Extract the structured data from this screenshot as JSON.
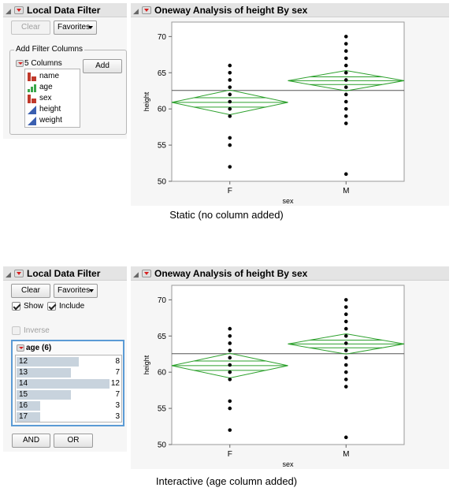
{
  "top": {
    "filter_panel": {
      "title": "Local Data Filter",
      "clear_label": "Clear",
      "favorites_label": "Favorites",
      "add_filter_columns_legend": "Add Filter Columns",
      "columns_count_label": "5 Columns",
      "add_label": "Add",
      "columns": [
        {
          "name": "name",
          "type": "nominal"
        },
        {
          "name": "age",
          "type": "ordinal"
        },
        {
          "name": "sex",
          "type": "nominal"
        },
        {
          "name": "height",
          "type": "continuous"
        },
        {
          "name": "weight",
          "type": "continuous"
        }
      ]
    },
    "analysis_title": "Oneway Analysis of height By sex",
    "caption": "Static (no column added)"
  },
  "bottom": {
    "filter_panel": {
      "title": "Local Data Filter",
      "clear_label": "Clear",
      "favorites_label": "Favorites",
      "show_label": "Show",
      "include_label": "Include",
      "inverse_label": "Inverse",
      "show_checked": true,
      "include_checked": true,
      "inverse_checked": false,
      "age_header": "age (6)",
      "age_levels": [
        {
          "label": "12",
          "count": "8"
        },
        {
          "label": "13",
          "count": "7"
        },
        {
          "label": "14",
          "count": "12"
        },
        {
          "label": "15",
          "count": "7"
        },
        {
          "label": "16",
          "count": "3"
        },
        {
          "label": "17",
          "count": "3"
        }
      ],
      "and_label": "AND",
      "or_label": "OR"
    },
    "analysis_title": "Oneway Analysis of height By sex",
    "caption": "Interactive (age column added)"
  },
  "chart_data": [
    {
      "type": "scatter",
      "title": "Oneway Analysis of height By sex",
      "xlabel": "sex",
      "ylabel": "height",
      "categories": [
        "F",
        "M"
      ],
      "ylim": [
        50,
        72
      ],
      "yticks": [
        50,
        55,
        60,
        65,
        70
      ],
      "grand_mean": 62.55,
      "series": [
        {
          "category": "F",
          "values": [
            52,
            55,
            56,
            59,
            60,
            61,
            62,
            63,
            64,
            65,
            66
          ],
          "mean": 60.9,
          "ci": [
            59.2,
            62.6
          ]
        },
        {
          "category": "M",
          "values": [
            51,
            58,
            59,
            60,
            61,
            62,
            63,
            64,
            65,
            66,
            67,
            68,
            69,
            70
          ],
          "mean": 63.9,
          "ci": [
            62.5,
            65.3
          ]
        }
      ],
      "colors": {
        "diamond": "#2ca02c",
        "points": "#000000",
        "mean_line": "#555555"
      }
    },
    {
      "type": "scatter",
      "title": "Oneway Analysis of height By sex",
      "xlabel": "sex",
      "ylabel": "height",
      "categories": [
        "F",
        "M"
      ],
      "ylim": [
        50,
        72
      ],
      "yticks": [
        50,
        55,
        60,
        65,
        70
      ],
      "grand_mean": 62.55,
      "series": [
        {
          "category": "F",
          "values": [
            52,
            55,
            56,
            59,
            60,
            61,
            62,
            63,
            64,
            65,
            66
          ],
          "mean": 60.9,
          "ci": [
            59.2,
            62.6
          ]
        },
        {
          "category": "M",
          "values": [
            51,
            58,
            59,
            60,
            61,
            62,
            63,
            64,
            65,
            66,
            67,
            68,
            69,
            70
          ],
          "mean": 63.9,
          "ci": [
            62.5,
            65.3
          ]
        }
      ],
      "colors": {
        "diamond": "#2ca02c",
        "points": "#000000",
        "mean_line": "#555555"
      }
    }
  ]
}
